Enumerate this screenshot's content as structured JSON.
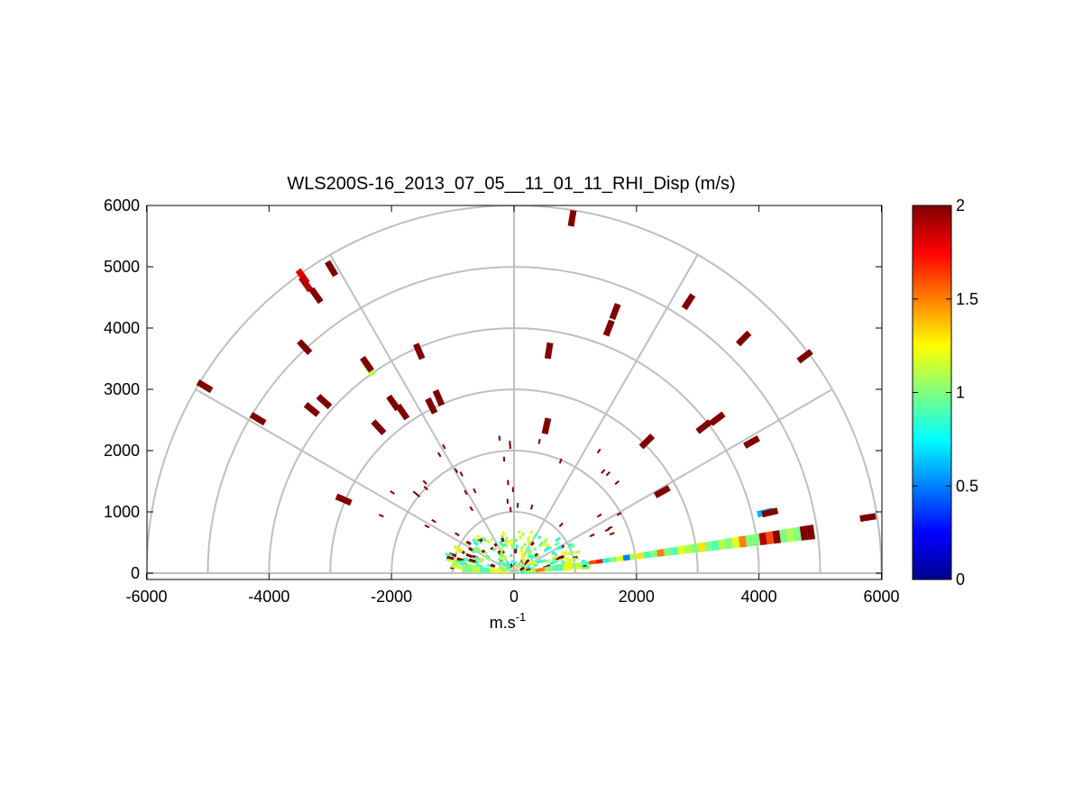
{
  "chart_data": {
    "type": "scatter",
    "subtype": "polar-rhi-sector",
    "title": "WLS200S-16_2013_07_05__11_01_11_RHI_Disp (m/s)",
    "xlabel": "m.s",
    "xlabel_sup": "-1",
    "ylabel": "",
    "xlim": [
      -6000,
      6000
    ],
    "ylim": [
      0,
      6000
    ],
    "xticks": [
      "-6000",
      "-4000",
      "-2000",
      "0",
      "2000",
      "4000",
      "6000"
    ],
    "yticks": [
      "0",
      "1000",
      "2000",
      "3000",
      "4000",
      "5000",
      "6000"
    ],
    "grid": {
      "range_rings": [
        1000,
        2000,
        3000,
        4000,
        5000,
        6000
      ],
      "spokes_deg": [
        0,
        30,
        60,
        90,
        120,
        150,
        180
      ]
    },
    "colorbar": {
      "min": 0,
      "max": 2,
      "ticks": [
        "0",
        "0.5",
        "1",
        "1.5",
        "2"
      ],
      "colormap": "jet"
    },
    "gates": [
      {
        "x": 950,
        "y": 5790,
        "v": 2.0
      },
      {
        "x": 1650,
        "y": 4270,
        "v": 2.0
      },
      {
        "x": 1550,
        "y": 4000,
        "v": 2.0
      },
      {
        "x": 570,
        "y": 3630,
        "v": 2.0
      },
      {
        "x": 530,
        "y": 2400,
        "v": 2.0
      },
      {
        "x": 2850,
        "y": 4430,
        "v": 2.0
      },
      {
        "x": 3750,
        "y": 3830,
        "v": 2.0
      },
      {
        "x": 4750,
        "y": 3540,
        "v": 2.0
      },
      {
        "x": 3320,
        "y": 2520,
        "v": 2.0
      },
      {
        "x": 3100,
        "y": 2390,
        "v": 2.0
      },
      {
        "x": 3880,
        "y": 2140,
        "v": 2.0
      },
      {
        "x": 2170,
        "y": 2150,
        "v": 2.0
      },
      {
        "x": 2420,
        "y": 1330,
        "v": 2.0
      },
      {
        "x": 5780,
        "y": 910,
        "v": 2.0
      },
      {
        "x": -3450,
        "y": 4840,
        "v": 1.8
      },
      {
        "x": -3400,
        "y": 4720,
        "v": 1.9
      },
      {
        "x": -2980,
        "y": 4970,
        "v": 2.0
      },
      {
        "x": -3230,
        "y": 4530,
        "v": 2.0
      },
      {
        "x": -3420,
        "y": 3690,
        "v": 2.0
      },
      {
        "x": -1550,
        "y": 3620,
        "v": 2.0
      },
      {
        "x": -2370,
        "y": 3340,
        "v": 1.1
      },
      {
        "x": -2400,
        "y": 3410,
        "v": 2.0
      },
      {
        "x": -5050,
        "y": 3050,
        "v": 2.0
      },
      {
        "x": -4180,
        "y": 2520,
        "v": 2.0
      },
      {
        "x": -3300,
        "y": 2670,
        "v": 2.0
      },
      {
        "x": -3100,
        "y": 2800,
        "v": 2.0
      },
      {
        "x": -1970,
        "y": 2780,
        "v": 2.0
      },
      {
        "x": -1820,
        "y": 2630,
        "v": 2.0
      },
      {
        "x": -1230,
        "y": 2860,
        "v": 2.0
      },
      {
        "x": -1350,
        "y": 2730,
        "v": 2.0
      },
      {
        "x": -2210,
        "y": 2380,
        "v": 2.0
      },
      {
        "x": -2780,
        "y": 1200,
        "v": 2.0
      },
      {
        "x": 4100,
        "y": 990,
        "v": 0.6
      },
      {
        "x": 4180,
        "y": 990,
        "v": 2.0
      }
    ],
    "beam": {
      "elevation_deg": 7.5,
      "gate_values": [
        1.0,
        1.1,
        0.9,
        1.6,
        1.7,
        0.8,
        1.0,
        1.2,
        0.5,
        1.1,
        1.3,
        0.9,
        1.0,
        1.5,
        1.0,
        0.9,
        1.2,
        1.1,
        1.0,
        1.3,
        1.0,
        0.9,
        1.1,
        1.0,
        1.2,
        1.5,
        1.0,
        1.0,
        1.9,
        1.6,
        2.0,
        1.0,
        1.1,
        1.0,
        2.0,
        2.0
      ]
    },
    "near_field": {
      "max_range_m": 1200,
      "dominant_values": [
        0.8,
        0.9,
        1.0,
        1.1,
        1.2,
        2.0
      ]
    }
  }
}
